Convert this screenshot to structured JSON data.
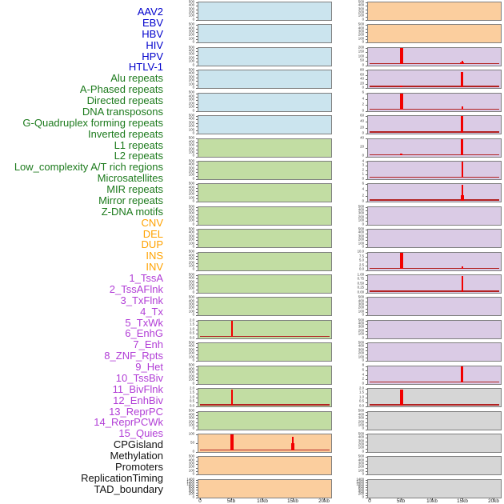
{
  "palette": {
    "label_colors": {
      "virus": "#0000CC",
      "repeat": "#1C7A1C",
      "sv": "#FFA200",
      "chromatin": "#B13DD6",
      "other": "#111111"
    },
    "fills": {
      "lightblue": "#CBE4EE",
      "lightgreen": "#C2DDA3",
      "orange": "#FBCE9E",
      "purple": "#DACBE5",
      "gray": "#D6D6D6"
    },
    "spike": "#F20000",
    "baseline": "#B22222",
    "box_border": "#7F7F7F"
  },
  "x_axis": {
    "tick_labels": [
      "0",
      "5kb",
      "10kb",
      "15kb",
      "20kb"
    ],
    "tick_values_kb": [
      0,
      5,
      10,
      15,
      20
    ]
  },
  "chart_data": {
    "type": "area",
    "x_unit": "kb",
    "x_range_kb": [
      0,
      20
    ],
    "columns": [
      {
        "tracks": [
          {
            "label": "AAV2",
            "group": "virus",
            "fill": "lightblue",
            "yticks": [
              "500",
              "400",
              "300",
              "200",
              "100",
              "0"
            ],
            "spikes": [],
            "baseline": false
          },
          {
            "label": "EBV",
            "group": "virus",
            "fill": "lightblue",
            "yticks": [
              "500",
              "400",
              "300",
              "200",
              "100",
              "0"
            ],
            "spikes": [],
            "baseline": false
          },
          {
            "label": "HBV",
            "group": "virus",
            "fill": "lightblue",
            "yticks": [
              "500",
              "400",
              "300",
              "200",
              "100",
              "0"
            ],
            "spikes": [],
            "baseline": false
          },
          {
            "label": "HIV",
            "group": "virus",
            "fill": "lightblue",
            "yticks": [
              "500",
              "400",
              "300",
              "200",
              "100",
              "0"
            ],
            "spikes": [],
            "baseline": false
          },
          {
            "label": "HPV",
            "group": "virus",
            "fill": "lightblue",
            "yticks": [
              "500",
              "400",
              "300",
              "200",
              "100",
              "0"
            ],
            "spikes": [],
            "baseline": false
          },
          {
            "label": "HTLV-1",
            "group": "virus",
            "fill": "lightblue",
            "yticks": [
              "500",
              "400",
              "300",
              "200",
              "100",
              "0"
            ],
            "spikes": [],
            "baseline": false
          },
          {
            "label": "Alu repeats",
            "group": "repeat",
            "fill": "lightgreen",
            "yticks": [
              "500",
              "400",
              "300",
              "200",
              "100",
              "0"
            ],
            "spikes": [],
            "baseline": false
          },
          {
            "label": "A-Phased repeats",
            "group": "repeat",
            "fill": "lightgreen",
            "yticks": [
              "500",
              "400",
              "300",
              "200",
              "100",
              "0"
            ],
            "spikes": [],
            "baseline": false
          },
          {
            "label": "Directed repeats",
            "group": "repeat",
            "fill": "lightgreen",
            "yticks": [
              "500",
              "400",
              "300",
              "200",
              "100",
              "0"
            ],
            "spikes": [],
            "baseline": false
          },
          {
            "label": "DNA transposons",
            "group": "repeat",
            "fill": "lightgreen",
            "yticks": [
              "500",
              "400",
              "300",
              "200",
              "100",
              "0"
            ],
            "spikes": [],
            "baseline": false
          },
          {
            "label": "G-Quadruplex forming repeats",
            "group": "repeat",
            "fill": "lightgreen",
            "yticks": [
              "500",
              "400",
              "300",
              "200",
              "100",
              "0"
            ],
            "spikes": [],
            "baseline": false
          },
          {
            "label": "Inverted repeats",
            "group": "repeat",
            "fill": "lightgreen",
            "yticks": [
              "500",
              "400",
              "300",
              "200",
              "100",
              "0"
            ],
            "spikes": [],
            "baseline": false
          },
          {
            "label": "L1 repeats",
            "group": "repeat",
            "fill": "lightgreen",
            "yticks": [
              "500",
              "400",
              "300",
              "200",
              "100",
              "0"
            ],
            "spikes": [],
            "baseline": false
          },
          {
            "label": "L2 repeats",
            "group": "repeat",
            "fill": "lightgreen",
            "yticks": [
              "500",
              "400",
              "300",
              "200",
              "100",
              "0"
            ],
            "spikes": [],
            "baseline": false
          },
          {
            "label": "Low_complexity A/T rich regions",
            "group": "repeat",
            "fill": "lightgreen",
            "yticks": [
              "2.0",
              "1.5",
              "1.0",
              "0.5",
              "0.0"
            ],
            "spikes": [
              {
                "x_kb": 5,
                "h": 1.0,
                "w": 2
              }
            ],
            "baseline": true
          },
          {
            "label": "Microsatellites",
            "group": "repeat",
            "fill": "lightgreen",
            "yticks": [
              "500",
              "400",
              "300",
              "200",
              "100",
              "0"
            ],
            "spikes": [],
            "baseline": false
          },
          {
            "label": "MIR repeats",
            "group": "repeat",
            "fill": "lightgreen",
            "yticks": [
              "500",
              "400",
              "300",
              "200",
              "100",
              "0"
            ],
            "spikes": [],
            "baseline": false
          },
          {
            "label": "Mirror repeats",
            "group": "repeat",
            "fill": "lightgreen",
            "yticks": [
              "2.0",
              "1.5",
              "1.0",
              "0.5",
              "0.0"
            ],
            "spikes": [
              {
                "x_kb": 5,
                "h": 0.97,
                "w": 2
              }
            ],
            "baseline": true
          },
          {
            "label": "Z-DNA motifs",
            "group": "repeat",
            "fill": "lightgreen",
            "yticks": [
              "500",
              "400",
              "300",
              "200",
              "100",
              "0"
            ],
            "spikes": [],
            "baseline": false
          },
          {
            "label": "CNV",
            "group": "sv",
            "fill": "orange",
            "yticks": [
              "100",
              "50",
              "0"
            ],
            "spikes": [
              {
                "x_kb": 5,
                "h": 1.0,
                "w": 4
              },
              {
                "x_kb": 15,
                "h": 0.45,
                "w": 4
              },
              {
                "x_kb": 15,
                "h": 0.85,
                "w": 2
              }
            ],
            "baseline": true
          },
          {
            "label": "DEL",
            "group": "sv",
            "fill": "orange",
            "yticks": [
              "500",
              "400",
              "300",
              "200",
              "100",
              "0"
            ],
            "spikes": [],
            "baseline": false
          },
          {
            "label": "DUP",
            "group": "sv",
            "fill": "orange",
            "yticks": [
              "1400",
              "1200",
              "1000",
              "800",
              "600",
              "400",
              "200",
              "0"
            ],
            "spikes": [],
            "baseline": false
          }
        ]
      },
      {
        "tracks": [
          {
            "label": "INS",
            "group": "sv",
            "fill": "orange",
            "yticks": [
              "500",
              "400",
              "300",
              "200",
              "100",
              "0"
            ],
            "spikes": [],
            "baseline": false
          },
          {
            "label": "INV",
            "group": "sv",
            "fill": "orange",
            "yticks": [
              "500",
              "400",
              "300",
              "200",
              "100",
              "0"
            ],
            "spikes": [],
            "baseline": false
          },
          {
            "label": "1_TssA",
            "group": "chromatin",
            "fill": "purple",
            "yticks": [
              "200",
              "150",
              "100",
              "50",
              "0"
            ],
            "spikes": [
              {
                "x_kb": 5,
                "h": 1.0,
                "w": 4
              },
              {
                "x_kb": 15,
                "h": 0.1,
                "w": 5
              },
              {
                "x_kb": 15,
                "h": 0.22,
                "w": 2.5
              }
            ],
            "baseline": true
          },
          {
            "label": "2_TssAFlnk",
            "group": "chromatin",
            "fill": "purple",
            "yticks": [
              "80",
              "60",
              "40",
              "20",
              "0"
            ],
            "spikes": [
              {
                "x_kb": 5,
                "h": 0.08,
                "w": 2.5
              },
              {
                "x_kb": 15,
                "h": 0.93,
                "w": 3
              }
            ],
            "baseline": true
          },
          {
            "label": "3_TxFlnk",
            "group": "chromatin",
            "fill": "purple",
            "yticks": [
              "6",
              "4",
              "2",
              "0"
            ],
            "spikes": [
              {
                "x_kb": 5,
                "h": 1.0,
                "w": 4
              },
              {
                "x_kb": 15,
                "h": 0.18,
                "w": 2
              }
            ],
            "baseline": true
          },
          {
            "label": "4_Tx",
            "group": "chromatin",
            "fill": "purple",
            "yticks": [
              "60",
              "40",
              "20",
              "0"
            ],
            "spikes": [
              {
                "x_kb": 15,
                "h": 1.0,
                "w": 3
              }
            ],
            "baseline": true
          },
          {
            "label": "5_TxWk",
            "group": "chromatin",
            "fill": "purple",
            "yticks": [
              "40",
              "20",
              "0"
            ],
            "spikes": [
              {
                "x_kb": 5,
                "h": 0.08,
                "w": 2.5
              },
              {
                "x_kb": 15,
                "h": 1.0,
                "w": 3
              }
            ],
            "baseline": true
          },
          {
            "label": "6_EnhG",
            "group": "chromatin",
            "fill": "purple",
            "yticks": [
              "4",
              "3",
              "2",
              "1",
              "0"
            ],
            "spikes": [
              {
                "x_kb": 15,
                "h": 1.0,
                "w": 2.5
              }
            ],
            "baseline": true
          },
          {
            "label": "7_Enh",
            "group": "chromatin",
            "fill": "purple",
            "yticks": [
              "6",
              "4",
              "2",
              "0"
            ],
            "spikes": [
              {
                "x_kb": 15,
                "h": 0.33,
                "w": 4
              },
              {
                "x_kb": 15,
                "h": 0.95,
                "w": 2
              }
            ],
            "baseline": true
          },
          {
            "label": "8_ZNF_Rpts",
            "group": "chromatin",
            "fill": "purple",
            "yticks": [
              "500",
              "400",
              "300",
              "200",
              "100",
              "0"
            ],
            "spikes": [],
            "baseline": false
          },
          {
            "label": "9_Het",
            "group": "chromatin",
            "fill": "purple",
            "yticks": [
              "500",
              "400",
              "300",
              "200",
              "100",
              "0"
            ],
            "spikes": [],
            "baseline": false
          },
          {
            "label": "10_TssBiv",
            "group": "chromatin",
            "fill": "purple",
            "yticks": [
              "10.0",
              "7.5",
              "5.0",
              "2.5",
              "0.0"
            ],
            "spikes": [
              {
                "x_kb": 5,
                "h": 1.0,
                "w": 4
              },
              {
                "x_kb": 15,
                "h": 0.15,
                "w": 2
              }
            ],
            "baseline": true
          },
          {
            "label": "11_BivFlnk",
            "group": "chromatin",
            "fill": "purple",
            "yticks": [
              "1.00",
              "0.75",
              "0.50",
              "0.25",
              "0.00"
            ],
            "spikes": [
              {
                "x_kb": 15,
                "h": 0.95,
                "w": 2
              }
            ],
            "baseline": true
          },
          {
            "label": "12_EnhBiv",
            "group": "chromatin",
            "fill": "purple",
            "yticks": [
              "500",
              "400",
              "300",
              "200",
              "100",
              "0"
            ],
            "spikes": [],
            "baseline": false
          },
          {
            "label": "13_ReprPC",
            "group": "chromatin",
            "fill": "purple",
            "yticks": [
              "500",
              "400",
              "300",
              "200",
              "100",
              "0"
            ],
            "spikes": [],
            "baseline": false
          },
          {
            "label": "14_ReprPCWk",
            "group": "chromatin",
            "fill": "purple",
            "yticks": [
              "500",
              "400",
              "300",
              "200",
              "100",
              "0"
            ],
            "spikes": [],
            "baseline": false
          },
          {
            "label": "15_Quies",
            "group": "chromatin",
            "fill": "purple",
            "yticks": [
              "8",
              "6",
              "4",
              "2",
              "0"
            ],
            "spikes": [
              {
                "x_kb": 15,
                "h": 1.0,
                "w": 3
              }
            ],
            "baseline": true
          },
          {
            "label": "CPGisland",
            "group": "other",
            "fill": "gray",
            "yticks": [
              "2.0",
              "1.5",
              "1.0",
              "0.5",
              "0.0"
            ],
            "spikes": [
              {
                "x_kb": 5,
                "h": 0.97,
                "w": 4
              }
            ],
            "baseline": true
          },
          {
            "label": "Methylation",
            "group": "other",
            "fill": "gray",
            "yticks": [
              "500",
              "400",
              "300",
              "200",
              "100",
              "0"
            ],
            "spikes": [],
            "baseline": false
          },
          {
            "label": "Promoters",
            "group": "other",
            "fill": "gray",
            "yticks": [
              "500",
              "400",
              "300",
              "200",
              "100",
              "0"
            ],
            "spikes": [],
            "baseline": false
          },
          {
            "label": "ReplicationTiming",
            "group": "other",
            "fill": "gray",
            "yticks": [
              "500",
              "400",
              "300",
              "200",
              "100",
              "0"
            ],
            "spikes": [],
            "baseline": false
          },
          {
            "label": "TAD_boundary",
            "group": "other",
            "fill": "gray",
            "yticks": [
              "1400",
              "1200",
              "1000",
              "800",
              "600",
              "400",
              "200",
              "0"
            ],
            "spikes": [],
            "baseline": false
          }
        ]
      }
    ]
  }
}
